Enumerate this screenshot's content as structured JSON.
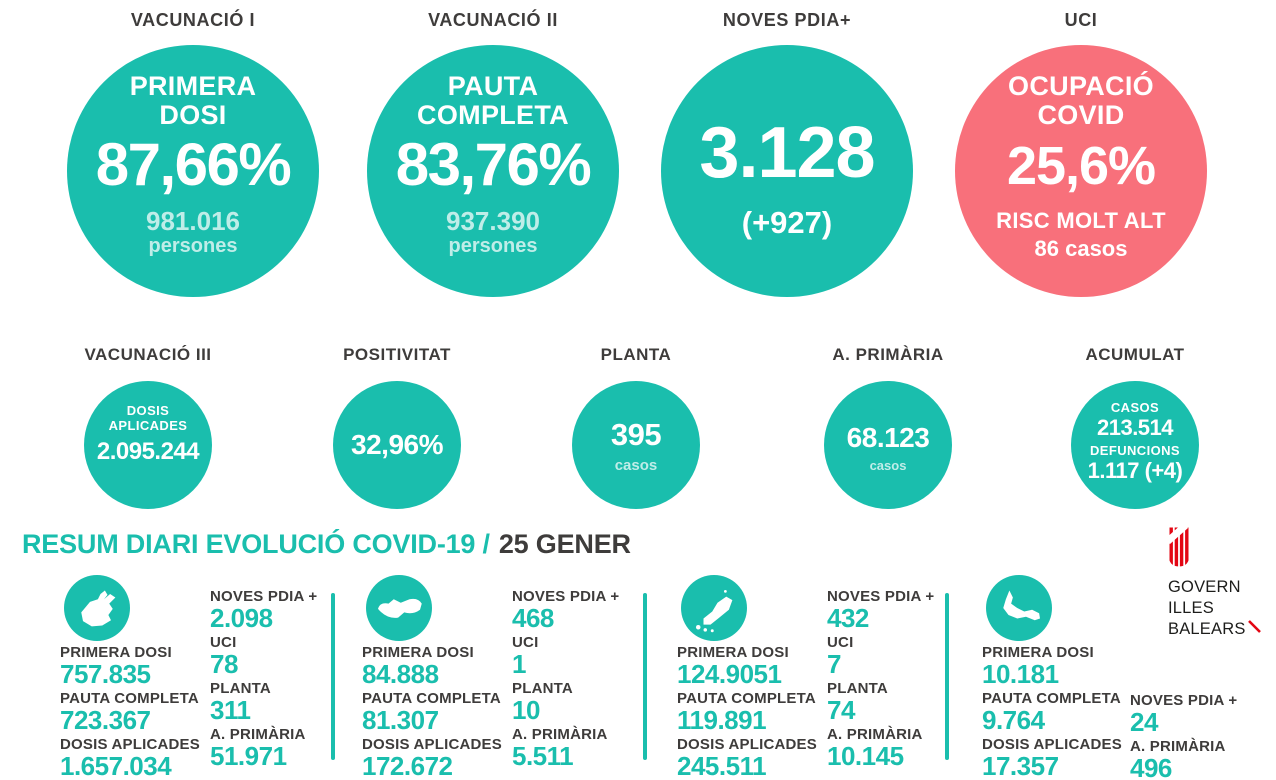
{
  "colors": {
    "teal": "#1ABEAD",
    "red": "#F8707B",
    "dark": "#3E3C3B",
    "logo_dark": "#1D1D1B",
    "logo_red": "#E30613"
  },
  "top_stats": [
    {
      "title": "VACUNACIÓ I",
      "label_line1": "PRIMERA",
      "label_line2": "DOSI",
      "value": "87,66%",
      "sub1": "981.016",
      "sub2": "persones"
    },
    {
      "title": "VACUNACIÓ II",
      "label_line1": "PAUTA",
      "label_line2": "COMPLETA",
      "value": "83,76%",
      "sub1": "937.390",
      "sub2": "persones"
    },
    {
      "title": "NOVES PDIA+",
      "value": "3.128",
      "sub1": "(+927)"
    },
    {
      "title": "UCI",
      "label_line1": "OCUPACIÓ",
      "label_line2": "COVID",
      "value": "25,6%",
      "sub1": "RISC MOLT ALT",
      "sub2": "86 casos"
    }
  ],
  "mid_stats": [
    {
      "title": "VACUNACIÓ III",
      "label_line1": "DOSIS",
      "label_line2": "APLICADES",
      "value": "2.095.244"
    },
    {
      "title": "POSITIVITAT",
      "value": "32,96%"
    },
    {
      "title": "PLANTA",
      "value": "395",
      "sub": "casos"
    },
    {
      "title": "A. PRIMÀRIA",
      "value": "68.123",
      "sub": "casos"
    },
    {
      "title": "ACUMULAT",
      "label1": "CASOS",
      "value1": "213.514",
      "label2": "DEFUNCIONS",
      "value2": "1.117 (+4)"
    }
  ],
  "section_title": {
    "main": "RESUM DIARI EVOLUCIÓ COVID-19 /",
    "date": "25 GENER"
  },
  "islands": [
    {
      "name": "mallorca",
      "stats_left": [
        {
          "label": "PRIMERA DOSI",
          "value": "757.835"
        },
        {
          "label": "PAUTA COMPLETA",
          "value": "723.367"
        },
        {
          "label": "DOSIS APLICADES",
          "value": "1.657.034"
        }
      ],
      "stats_right": [
        {
          "label": "NOVES PDIA +",
          "value": "2.098"
        },
        {
          "label": "UCI",
          "value": "78"
        },
        {
          "label": "PLANTA",
          "value": "311"
        },
        {
          "label": "A. PRIMÀRIA",
          "value": "51.971"
        }
      ]
    },
    {
      "name": "menorca",
      "stats_left": [
        {
          "label": "PRIMERA DOSI",
          "value": "84.888"
        },
        {
          "label": "PAUTA COMPLETA",
          "value": "81.307"
        },
        {
          "label": "DOSIS APLICADES",
          "value": "172.672"
        }
      ],
      "stats_right": [
        {
          "label": "NOVES PDIA +",
          "value": "468"
        },
        {
          "label": "UCI",
          "value": "1"
        },
        {
          "label": "PLANTA",
          "value": "10"
        },
        {
          "label": "A. PRIMÀRIA",
          "value": "5.511"
        }
      ]
    },
    {
      "name": "eivissa",
      "stats_left": [
        {
          "label": "PRIMERA DOSI",
          "value": "124.9051"
        },
        {
          "label": "PAUTA COMPLETA",
          "value": "119.891"
        },
        {
          "label": "DOSIS APLICADES",
          "value": "245.511"
        }
      ],
      "stats_right": [
        {
          "label": "NOVES PDIA +",
          "value": "432"
        },
        {
          "label": "UCI",
          "value": "7"
        },
        {
          "label": "PLANTA",
          "value": "74"
        },
        {
          "label": "A. PRIMÀRIA",
          "value": "10.145"
        }
      ]
    },
    {
      "name": "formentera",
      "stats_left": [
        {
          "label": "PRIMERA DOSI",
          "value": "10.181"
        },
        {
          "label": "PAUTA COMPLETA",
          "value": "9.764"
        },
        {
          "label": "DOSIS APLICADES",
          "value": "17.357"
        }
      ],
      "stats_right": [
        {
          "label": "NOVES PDIA +",
          "value": "24"
        },
        {
          "label": "A. PRIMÀRIA",
          "value": "496"
        }
      ]
    }
  ],
  "logo": {
    "line1": "GOVERN",
    "line2": "ILLES",
    "line3": "BALEARS"
  },
  "chart_data": {
    "type": "table",
    "title": "RESUM DIARI EVOLUCIÓ COVID-19 / 25 GENER",
    "headline_metrics": [
      {
        "metric": "Vacunació I - Primera dosi",
        "value_pct": 87.66,
        "persones": 981016
      },
      {
        "metric": "Vacunació II - Pauta completa",
        "value_pct": 83.76,
        "persones": 937390
      },
      {
        "metric": "Noves PDIA+",
        "value": 3128,
        "delta": "+927"
      },
      {
        "metric": "UCI - Ocupació COVID",
        "value_pct": 25.6,
        "risc": "RISC MOLT ALT",
        "casos": 86
      },
      {
        "metric": "Vacunació III - Dosis aplicades",
        "value": 2095244
      },
      {
        "metric": "Positivitat",
        "value_pct": 32.96
      },
      {
        "metric": "Planta",
        "casos": 395
      },
      {
        "metric": "A. Primària",
        "casos": 68123
      },
      {
        "metric": "Acumulat casos",
        "value": 213514
      },
      {
        "metric": "Acumulat defuncions",
        "value": "1.117 (+4)"
      }
    ],
    "columns": [
      "Illa",
      "Primera dosi",
      "Pauta completa",
      "Dosis aplicades",
      "Noves PDIA+",
      "UCI",
      "Planta",
      "A. Primària"
    ],
    "rows": [
      [
        "Mallorca",
        "757.835",
        "723.367",
        "1.657.034",
        "2.098",
        "78",
        "311",
        "51.971"
      ],
      [
        "Menorca",
        "84.888",
        "81.307",
        "172.672",
        "468",
        "1",
        "10",
        "5.511"
      ],
      [
        "Eivissa",
        "124.9051",
        "119.891",
        "245.511",
        "432",
        "7",
        "74",
        "10.145"
      ],
      [
        "Formentera",
        "10.181",
        "9.764",
        "17.357",
        "24",
        "",
        "",
        "496"
      ]
    ]
  }
}
